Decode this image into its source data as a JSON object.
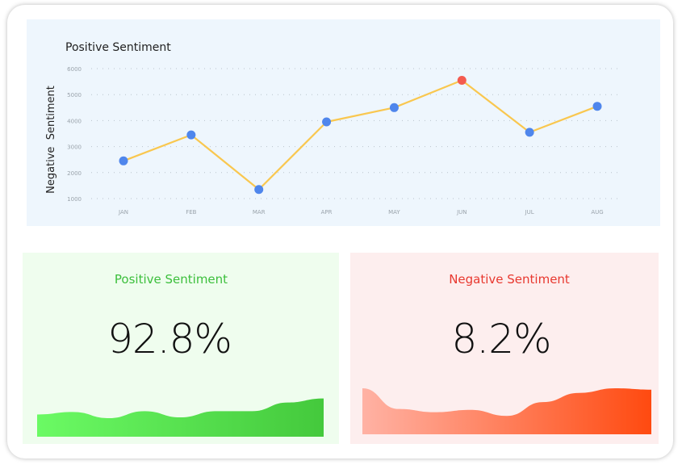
{
  "chart_data": {
    "type": "line",
    "title": "Positive Sentiment",
    "ylabel": "Negative  Sentiment",
    "xlabel": "",
    "categories": [
      "JAN",
      "FEB",
      "MAR",
      "APR",
      "MAY",
      "JUN",
      "JUL",
      "AUG"
    ],
    "series": [
      {
        "values": [
          2450,
          3450,
          1350,
          3950,
          4500,
          5550,
          3550,
          4550
        ],
        "line_color": "#f9c74f",
        "marker_color": "#4f86ec",
        "highlight_index": 5,
        "highlight_color": "#f45b4f"
      }
    ],
    "yticks": [
      1000,
      2000,
      3000,
      4000,
      5000,
      6000
    ],
    "ylim": [
      1000,
      6000
    ],
    "grid": "horizontal-dotted"
  },
  "stats": {
    "positive": {
      "label": "Positive Sentiment",
      "value": "92.8%",
      "label_color": "#3cbf3c",
      "fill_start": "#6bfa64",
      "fill_end": "#44c93c",
      "wave_levels": [
        0.46,
        0.4,
        0.55,
        0.38,
        0.53,
        0.38,
        0.38,
        0.17,
        0.07
      ]
    },
    "negative": {
      "label": "Negative Sentiment",
      "value": "8.2%",
      "label_color": "#e8382f",
      "fill_start": "#ffb2a4",
      "fill_end": "#ff4a10",
      "wave_levels": [
        0.0,
        0.45,
        0.52,
        0.47,
        0.6,
        0.3,
        0.1,
        0.0,
        0.03
      ]
    }
  }
}
